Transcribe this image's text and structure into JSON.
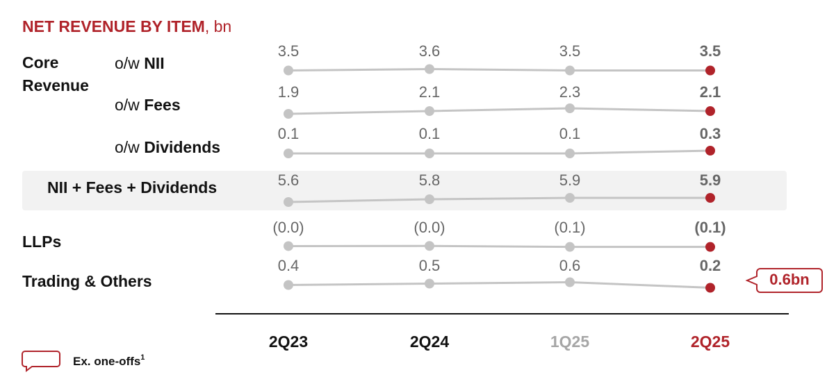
{
  "chart_data": {
    "type": "line",
    "title": "NET REVENUE BY ITEM",
    "title_unit": ", bn",
    "categories": [
      "2Q23",
      "2Q24",
      "1Q25",
      "2Q25"
    ],
    "category_colors": [
      "#111111",
      "#111111",
      "#a6a6a6",
      "#b0232a"
    ],
    "group_label": "Core Revenue",
    "line_color": "#c4c4c4",
    "highlight_color": "#b0232a",
    "series": [
      {
        "prefix": "o/w",
        "name": "NII",
        "values": [
          3.5,
          3.6,
          3.5,
          3.5
        ]
      },
      {
        "prefix": "o/w",
        "name": "Fees",
        "values": [
          1.9,
          2.1,
          2.3,
          2.1
        ]
      },
      {
        "prefix": "o/w",
        "name": "Dividends",
        "values": [
          0.1,
          0.1,
          0.1,
          0.3
        ]
      },
      {
        "name": "NII + Fees + Dividends",
        "values": [
          5.6,
          5.8,
          5.9,
          5.9
        ],
        "shaded": true
      },
      {
        "name": "LLPs",
        "values": [
          -0.04,
          -0.03,
          -0.1,
          -0.1
        ],
        "value_labels": [
          "(0.0)",
          "(0.0)",
          "(0.1)",
          "(0.1)"
        ]
      },
      {
        "name": "Trading & Others",
        "values": [
          0.4,
          0.5,
          0.6,
          0.2
        ],
        "annotation": "0.6bn"
      }
    ],
    "legend": {
      "label": "Ex. one-offs",
      "footnote": "1"
    }
  }
}
